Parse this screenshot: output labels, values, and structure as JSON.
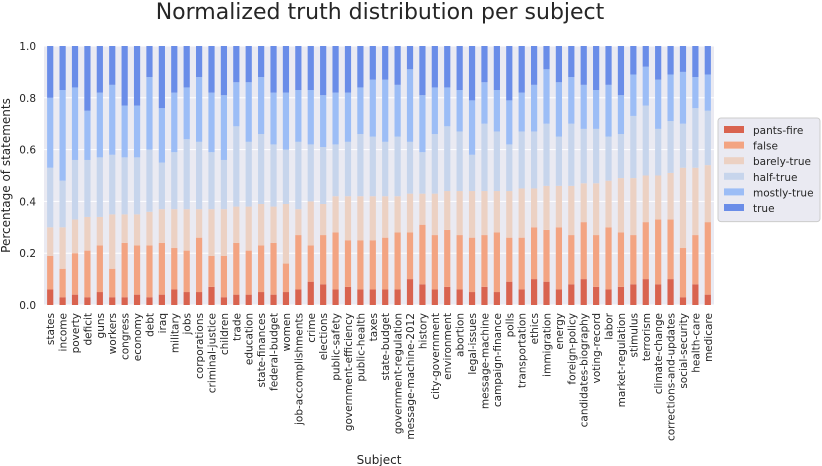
{
  "chart_data": {
    "type": "bar",
    "stacked": true,
    "title": "Normalized truth distribution per subject",
    "xlabel": "Subject",
    "ylabel": "Percentage of statements",
    "ylim": [
      0,
      1
    ],
    "yticks": [
      "0.0",
      "0.2",
      "0.4",
      "0.6",
      "0.8",
      "1.0"
    ],
    "grid": true,
    "legend_position": "right",
    "categories": [
      "states",
      "income",
      "poverty",
      "deficit",
      "guns",
      "workers",
      "congress",
      "economy",
      "debt",
      "iraq",
      "military",
      "jobs",
      "corporations",
      "criminal-justice",
      "children",
      "trade",
      "education",
      "state-finances",
      "federal-budget",
      "women",
      "job-accomplishments",
      "crime",
      "elections",
      "public-safety",
      "government-efficiency",
      "public-health",
      "taxes",
      "state-budget",
      "government-regulation",
      "message-machine-2012",
      "history",
      "city-government",
      "environment",
      "abortion",
      "legal-issues",
      "message-machine",
      "campaign-finance",
      "polls",
      "transportation",
      "ethics",
      "immigration",
      "energy",
      "foreign-policy",
      "candidates-biography",
      "voting-record",
      "labor",
      "market-regulation",
      "stimulus",
      "terrorism",
      "climate-change",
      "corrections-and-updates",
      "social-security",
      "health-care",
      "medicare"
    ],
    "series": [
      {
        "name": "pants-fire",
        "color": "#d9634f",
        "values": [
          0.06,
          0.03,
          0.04,
          0.03,
          0.05,
          0.03,
          0.03,
          0.04,
          0.03,
          0.04,
          0.06,
          0.05,
          0.05,
          0.07,
          0.03,
          0.04,
          0.04,
          0.05,
          0.04,
          0.05,
          0.06,
          0.09,
          0.08,
          0.06,
          0.07,
          0.06,
          0.06,
          0.06,
          0.06,
          0.1,
          0.08,
          0.06,
          0.07,
          0.06,
          0.05,
          0.07,
          0.05,
          0.09,
          0.06,
          0.1,
          0.09,
          0.06,
          0.08,
          0.1,
          0.07,
          0.06,
          0.07,
          0.08,
          0.1,
          0.08,
          0.1,
          0.03,
          0.08,
          0.04
        ]
      },
      {
        "name": "false",
        "color": "#f3a482",
        "values": [
          0.13,
          0.11,
          0.16,
          0.18,
          0.18,
          0.11,
          0.21,
          0.19,
          0.2,
          0.2,
          0.16,
          0.16,
          0.21,
          0.12,
          0.16,
          0.2,
          0.17,
          0.18,
          0.2,
          0.11,
          0.21,
          0.14,
          0.19,
          0.22,
          0.18,
          0.19,
          0.19,
          0.2,
          0.22,
          0.18,
          0.23,
          0.21,
          0.22,
          0.21,
          0.21,
          0.2,
          0.23,
          0.17,
          0.2,
          0.2,
          0.2,
          0.24,
          0.19,
          0.22,
          0.2,
          0.24,
          0.21,
          0.19,
          0.22,
          0.25,
          0.23,
          0.19,
          0.19,
          0.28
        ]
      },
      {
        "name": "barely-true",
        "color": "#ecd1c3",
        "values": [
          0.11,
          0.16,
          0.13,
          0.13,
          0.11,
          0.21,
          0.11,
          0.12,
          0.13,
          0.13,
          0.15,
          0.16,
          0.11,
          0.18,
          0.18,
          0.14,
          0.17,
          0.16,
          0.14,
          0.23,
          0.1,
          0.17,
          0.12,
          0.14,
          0.17,
          0.17,
          0.17,
          0.16,
          0.14,
          0.15,
          0.12,
          0.16,
          0.15,
          0.17,
          0.18,
          0.17,
          0.16,
          0.18,
          0.19,
          0.15,
          0.17,
          0.16,
          0.19,
          0.15,
          0.2,
          0.18,
          0.21,
          0.22,
          0.18,
          0.17,
          0.18,
          0.31,
          0.26,
          0.22
        ]
      },
      {
        "name": "half-true",
        "color": "#c7d5ec",
        "values": [
          0.23,
          0.18,
          0.23,
          0.22,
          0.23,
          0.23,
          0.22,
          0.22,
          0.24,
          0.18,
          0.22,
          0.27,
          0.26,
          0.22,
          0.19,
          0.31,
          0.25,
          0.27,
          0.24,
          0.21,
          0.26,
          0.22,
          0.22,
          0.2,
          0.21,
          0.24,
          0.23,
          0.21,
          0.23,
          0.2,
          0.16,
          0.23,
          0.25,
          0.23,
          0.14,
          0.26,
          0.23,
          0.18,
          0.22,
          0.22,
          0.24,
          0.19,
          0.24,
          0.21,
          0.21,
          0.17,
          0.17,
          0.24,
          0.27,
          0.18,
          0.2,
          0.17,
          0.23,
          0.21
        ]
      },
      {
        "name": "mostly-true",
        "color": "#9cbdf6",
        "values": [
          0.27,
          0.35,
          0.28,
          0.19,
          0.25,
          0.27,
          0.2,
          0.2,
          0.28,
          0.21,
          0.23,
          0.2,
          0.25,
          0.23,
          0.25,
          0.17,
          0.23,
          0.22,
          0.2,
          0.22,
          0.2,
          0.21,
          0.2,
          0.2,
          0.19,
          0.18,
          0.22,
          0.24,
          0.2,
          0.28,
          0.22,
          0.18,
          0.15,
          0.16,
          0.21,
          0.16,
          0.16,
          0.17,
          0.15,
          0.18,
          0.21,
          0.21,
          0.18,
          0.17,
          0.15,
          0.2,
          0.15,
          0.16,
          0.15,
          0.19,
          0.18,
          0.2,
          0.12,
          0.14
        ]
      },
      {
        "name": "true",
        "color": "#6a8de8",
        "values": [
          0.2,
          0.17,
          0.16,
          0.25,
          0.18,
          0.15,
          0.23,
          0.23,
          0.12,
          0.24,
          0.18,
          0.16,
          0.12,
          0.18,
          0.19,
          0.14,
          0.14,
          0.12,
          0.18,
          0.18,
          0.17,
          0.17,
          0.19,
          0.18,
          0.18,
          0.16,
          0.13,
          0.13,
          0.15,
          0.09,
          0.19,
          0.16,
          0.16,
          0.17,
          0.21,
          0.14,
          0.17,
          0.21,
          0.18,
          0.15,
          0.09,
          0.14,
          0.12,
          0.15,
          0.17,
          0.15,
          0.19,
          0.11,
          0.08,
          0.13,
          0.11,
          0.1,
          0.12,
          0.11
        ]
      }
    ]
  }
}
